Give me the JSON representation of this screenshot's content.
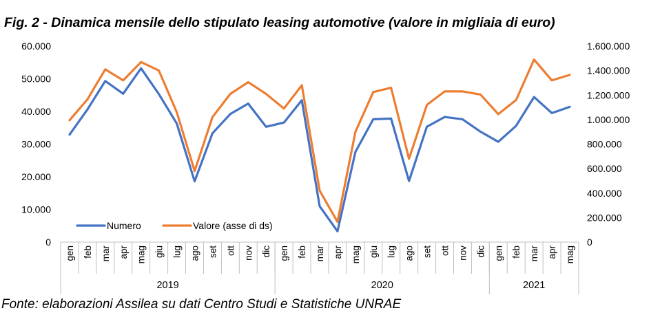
{
  "chart_data": {
    "type": "line",
    "title": "Fig. 2 - Dinamica mensile dello stipulato leasing automotive (valore in migliaia di euro)",
    "source": "Fonte: elaborazioni Assilea su dati Centro Studi e Statistiche UNRAE",
    "years": [
      {
        "label": "2019",
        "months": 12
      },
      {
        "label": "2020",
        "months": 12
      },
      {
        "label": "2021",
        "months": 5
      }
    ],
    "categories": [
      "gen",
      "feb",
      "mar",
      "apr",
      "mag",
      "giu",
      "lug",
      "ago",
      "set",
      "ott",
      "nov",
      "dic",
      "gen",
      "feb",
      "mar",
      "apr",
      "mag",
      "giu",
      "lug",
      "ago",
      "set",
      "ott",
      "nov",
      "dic",
      "gen",
      "feb",
      "mar",
      "apr",
      "mag"
    ],
    "y_left": {
      "ticks": [
        "0",
        "10.000",
        "20.000",
        "30.000",
        "40.000",
        "50.000",
        "60.000"
      ],
      "ylim": [
        0,
        60000
      ]
    },
    "y_right": {
      "ticks": [
        "0",
        "200.000",
        "400.000",
        "600.000",
        "800.000",
        "1.000.000",
        "1.200.000",
        "1.400.000",
        "1.600.000"
      ],
      "ylim": [
        0,
        1600000
      ]
    },
    "series": [
      {
        "name": "Numero",
        "axis": "left",
        "color": "#4472C4",
        "values": [
          32900,
          40600,
          49300,
          45400,
          53200,
          45300,
          36300,
          18600,
          33300,
          39200,
          42400,
          35300,
          36600,
          43400,
          11000,
          3300,
          27600,
          37600,
          37800,
          18700,
          35300,
          38300,
          37600,
          33800,
          30700,
          35600,
          44400,
          39500,
          41400
        ]
      },
      {
        "name": "Valore (asse di ds)",
        "axis": "right",
        "color": "#ED7D31",
        "values": [
          995000,
          1165000,
          1410000,
          1320000,
          1470000,
          1400000,
          1060000,
          580000,
          1020000,
          1210000,
          1305000,
          1210000,
          1090000,
          1280000,
          420000,
          165000,
          900000,
          1225000,
          1260000,
          680000,
          1120000,
          1230000,
          1230000,
          1205000,
          1045000,
          1160000,
          1490000,
          1320000,
          1365000
        ]
      }
    ],
    "legend_position": "bottom-left",
    "grid": false
  }
}
